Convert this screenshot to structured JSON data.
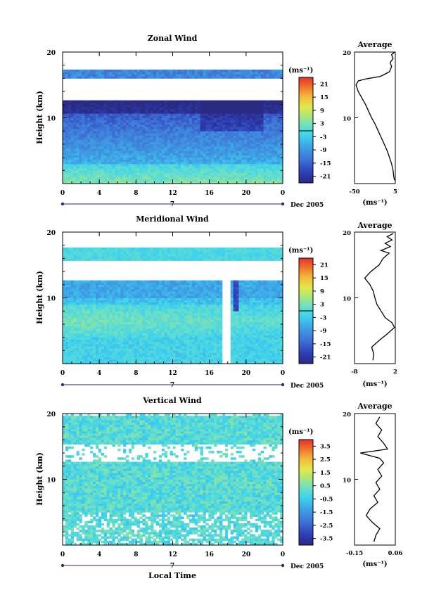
{
  "chart_data": [
    {
      "type": "heatmap",
      "title": "Zonal Wind",
      "ylabel": "Height (km)",
      "xlabel": "",
      "x_ticks": [
        "0",
        "4",
        "8",
        "12",
        "16",
        "20",
        "0"
      ],
      "y_ticks": [
        "20",
        "10"
      ],
      "date_day": "7",
      "date_label": "Dec 2005",
      "xlim": [
        0,
        24
      ],
      "ylim": [
        0,
        20
      ],
      "unit_label": "(ms⁻¹)",
      "colorbar_ticks": [
        "21",
        "15",
        "9",
        "3",
        "-3",
        "-9",
        "-15",
        "-21"
      ],
      "colorbar_range": [
        -24,
        24
      ],
      "zero_line": true,
      "profile": {
        "title": "Average",
        "x_ticks": [
          "-50",
          "5"
        ],
        "xlim": [
          -50,
          5
        ],
        "y_ticks": [
          "20",
          "10"
        ],
        "xlabel": "(ms⁻¹)",
        "points": [
          [
            4,
            0.5
          ],
          [
            3,
            1
          ],
          [
            2,
            2
          ],
          [
            0,
            3
          ],
          [
            -3,
            4
          ],
          [
            -6,
            5
          ],
          [
            -10,
            6
          ],
          [
            -14,
            7
          ],
          [
            -18,
            8
          ],
          [
            -22,
            9
          ],
          [
            -27,
            10
          ],
          [
            -31,
            11
          ],
          [
            -35,
            12
          ],
          [
            -40,
            13
          ],
          [
            -45,
            14
          ],
          [
            -48,
            15
          ],
          [
            -45,
            15.6
          ],
          [
            -35,
            15.9
          ],
          [
            -15,
            16.3
          ],
          [
            -3,
            17
          ],
          [
            0,
            17.8
          ],
          [
            -2,
            18.4
          ],
          [
            2,
            19
          ],
          [
            0,
            19.6
          ],
          [
            4,
            20
          ]
        ]
      }
    },
    {
      "type": "heatmap",
      "title": "Meridional Wind",
      "ylabel": "Height (km)",
      "xlabel": "",
      "x_ticks": [
        "0",
        "4",
        "8",
        "12",
        "16",
        "20",
        "0"
      ],
      "y_ticks": [
        "20",
        "10"
      ],
      "date_day": "7",
      "date_label": "Dec 2005",
      "xlim": [
        0,
        24
      ],
      "ylim": [
        0,
        20
      ],
      "unit_label": "(ms⁻¹)",
      "colorbar_ticks": [
        "21",
        "15",
        "9",
        "3",
        "-3",
        "-9",
        "-15",
        "-21"
      ],
      "colorbar_range": [
        -24,
        24
      ],
      "zero_line": true,
      "profile": {
        "title": "Average",
        "x_ticks": [
          "-8",
          "2"
        ],
        "xlim": [
          -8,
          2
        ],
        "y_ticks": [
          "20",
          "10"
        ],
        "xlabel": "(ms⁻¹)",
        "points": [
          [
            -3.5,
            0.5
          ],
          [
            -3.3,
            1.5
          ],
          [
            -3.8,
            2.5
          ],
          [
            -2,
            3.5
          ],
          [
            0,
            4.5
          ],
          [
            1.8,
            5.5
          ],
          [
            1.2,
            6.2
          ],
          [
            -0.5,
            7
          ],
          [
            -1.5,
            8
          ],
          [
            -2.5,
            9
          ],
          [
            -3,
            10
          ],
          [
            -3.4,
            11
          ],
          [
            -4.2,
            12
          ],
          [
            -5.5,
            13
          ],
          [
            -4,
            14
          ],
          [
            -2,
            15
          ],
          [
            -1,
            16
          ],
          [
            0.5,
            16.8
          ],
          [
            -1.5,
            17.2
          ],
          [
            0.8,
            17.8
          ],
          [
            -0.5,
            18.3
          ],
          [
            1.2,
            18.8
          ],
          [
            0,
            19.3
          ],
          [
            1.5,
            19.8
          ]
        ]
      }
    },
    {
      "type": "heatmap",
      "title": "Vertical Wind",
      "ylabel": "Height (km)",
      "xlabel": "Local Time",
      "x_ticks": [
        "0",
        "4",
        "8",
        "12",
        "16",
        "20",
        "0"
      ],
      "y_ticks": [
        "20",
        "10"
      ],
      "date_day": "7",
      "date_label": "Dec 2005",
      "xlim": [
        0,
        24
      ],
      "ylim": [
        0,
        20
      ],
      "unit_label": "(ms⁻¹)",
      "colorbar_ticks": [
        "3.5",
        "2.5",
        "1.5",
        "0.5",
        "-0.5",
        "-1.5",
        "-2.5",
        "-3.5"
      ],
      "colorbar_range": [
        -4,
        4
      ],
      "zero_line": false,
      "profile": {
        "title": "Average",
        "x_ticks": [
          "-0.15",
          "0.06"
        ],
        "xlim": [
          -0.15,
          0.06
        ],
        "y_ticks": [
          "20",
          "10"
        ],
        "xlabel": "(ms⁻¹)",
        "points": [
          [
            -0.05,
            0.5
          ],
          [
            -0.04,
            1.5
          ],
          [
            -0.02,
            2.5
          ],
          [
            -0.06,
            3.5
          ],
          [
            -0.09,
            4.5
          ],
          [
            -0.07,
            5.5
          ],
          [
            -0.03,
            6.5
          ],
          [
            -0.05,
            7.5
          ],
          [
            -0.02,
            8.5
          ],
          [
            -0.04,
            9.5
          ],
          [
            -0.01,
            10.5
          ],
          [
            -0.03,
            11.5
          ],
          [
            0.0,
            12.5
          ],
          [
            -0.02,
            13.2
          ],
          [
            -0.12,
            14.0
          ],
          [
            0.02,
            14.6
          ],
          [
            0.0,
            15.5
          ],
          [
            -0.03,
            16.5
          ],
          [
            -0.01,
            17.5
          ],
          [
            -0.04,
            18.5
          ],
          [
            -0.02,
            19.5
          ]
        ]
      }
    }
  ]
}
